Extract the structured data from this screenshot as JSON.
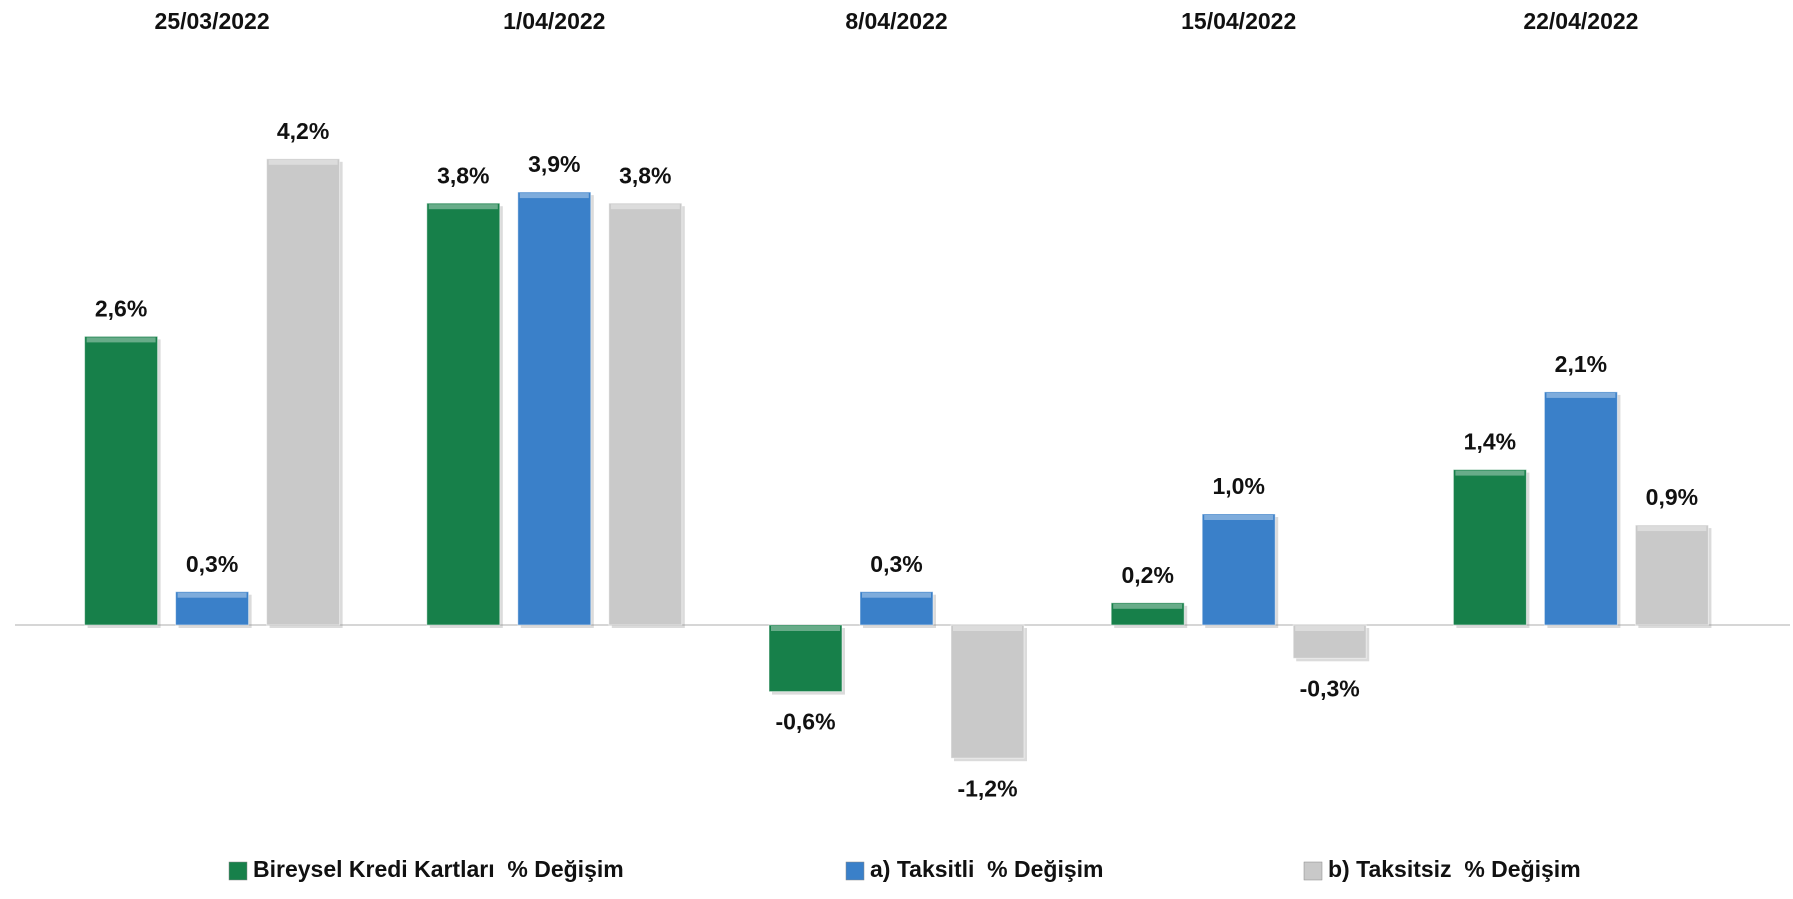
{
  "chart_data": {
    "type": "bar",
    "categories": [
      "25/03/2022",
      "1/04/2022",
      "8/04/2022",
      "15/04/2022",
      "22/04/2022"
    ],
    "series": [
      {
        "name": "Bireysel Kredi Kartları  % Değişim",
        "color": "#17804a",
        "values": [
          2.6,
          3.8,
          -0.6,
          0.2,
          1.4
        ],
        "value_labels": [
          "2,6%",
          "3,8%",
          "-0,6%",
          "0,2%",
          "1,4%"
        ]
      },
      {
        "name": "a) Taksitli  % Değişim",
        "color": "#3a80c9",
        "values": [
          0.3,
          3.9,
          0.3,
          1.0,
          2.1
        ],
        "value_labels": [
          "0,3%",
          "3,9%",
          "0,3%",
          "1,0%",
          "2,1%"
        ]
      },
      {
        "name": "b) Taksitsiz  % Değişim",
        "color": "#c9c9c9",
        "values": [
          4.2,
          3.8,
          -1.2,
          -0.3,
          0.9
        ],
        "value_labels": [
          "4,2%",
          "3,8%",
          "-1,2%",
          "-0,3%",
          "0,9%"
        ]
      }
    ],
    "ylim": [
      -2,
      5
    ],
    "legend": "bottom"
  }
}
